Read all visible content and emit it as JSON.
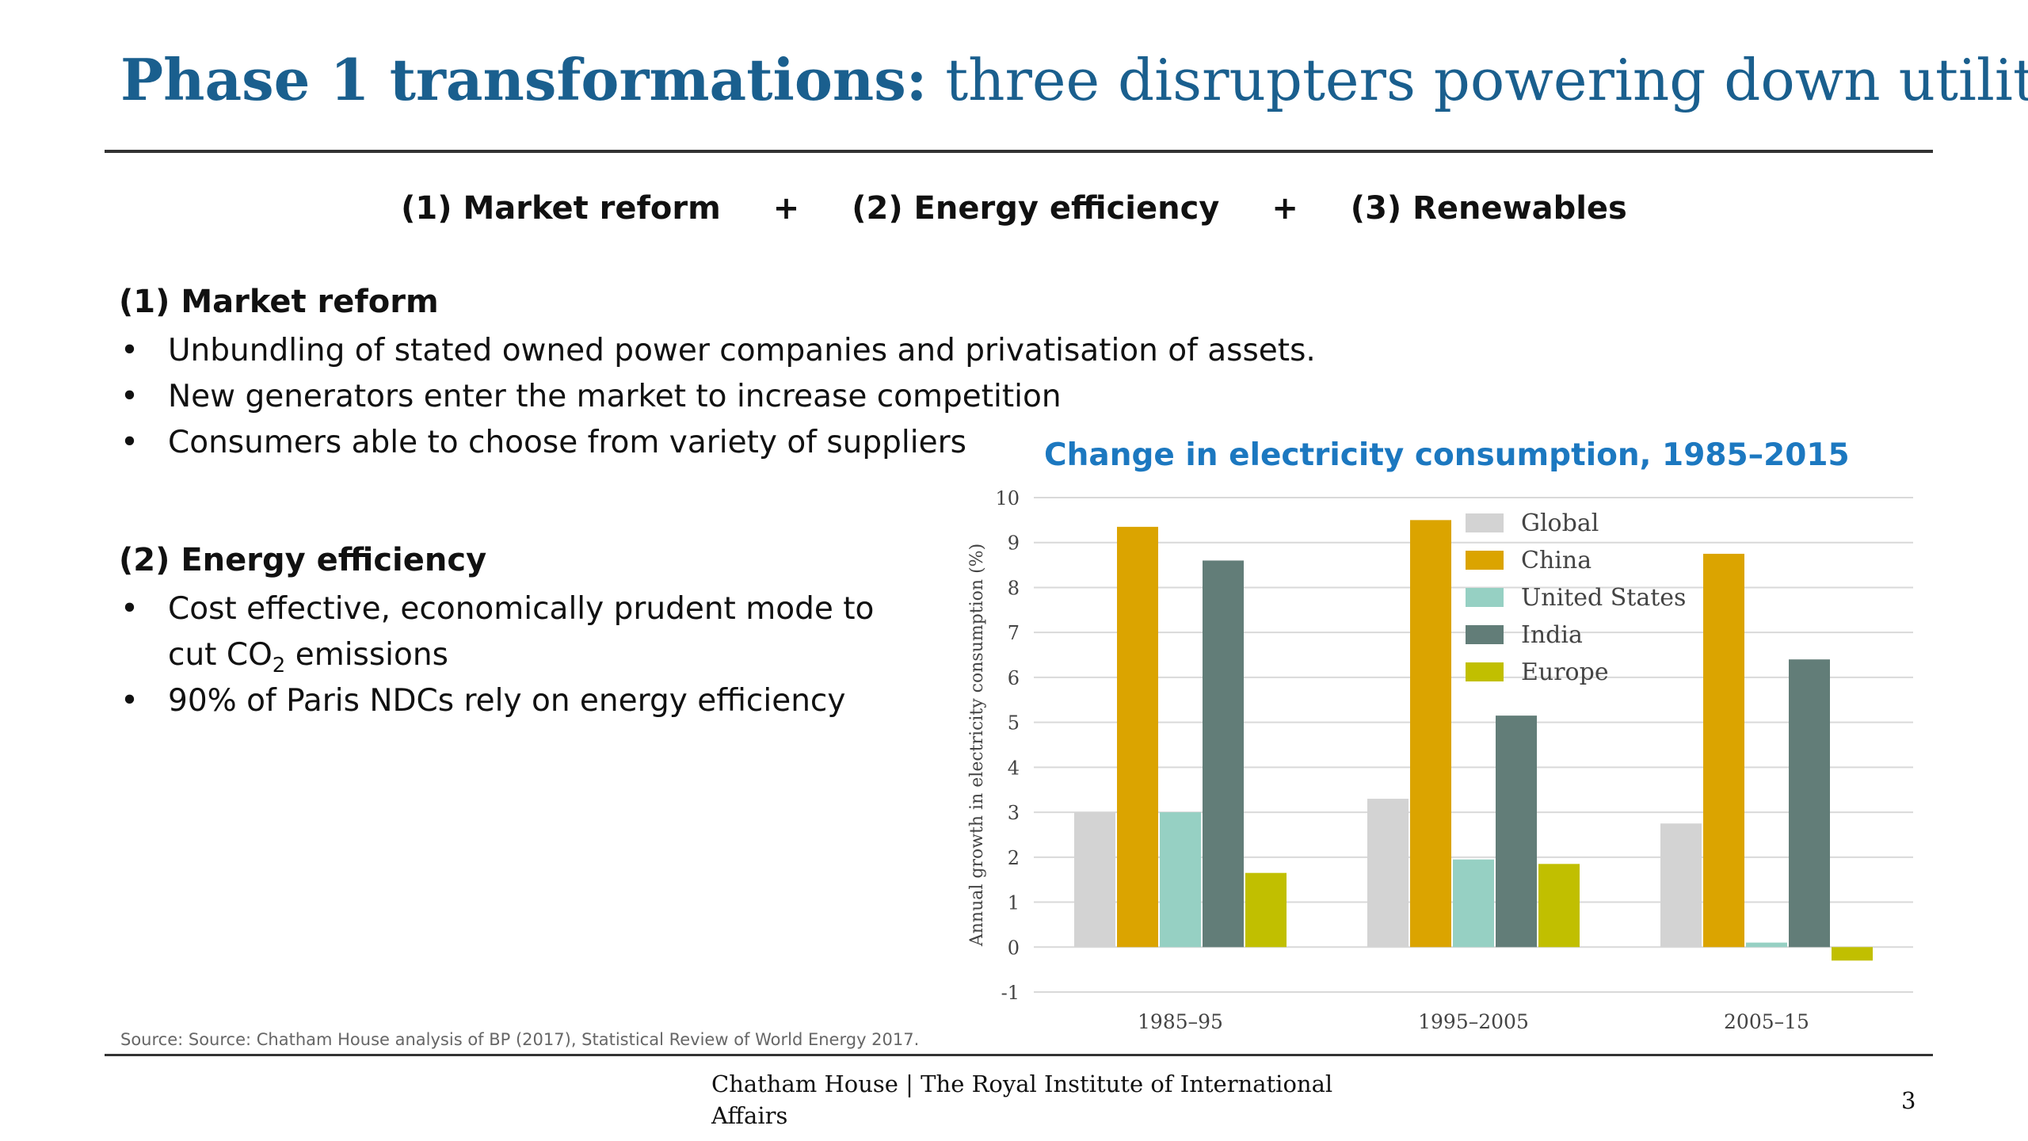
{
  "title": {
    "bold": "Phase 1 transformations:",
    "rest": "three disrupters powering down utilities"
  },
  "disrupters": {
    "item1": "(1) Market reform",
    "plus1": "+",
    "item2": "(2) Energy efficiency",
    "plus2": "+",
    "item3": "(3) Renewables"
  },
  "section1": {
    "heading": "(1) Market reform",
    "bullets": [
      "Unbundling of stated owned power companies and privatisation of assets.",
      "New generators enter the market to increase competition",
      "Consumers able to choose from variety of suppliers"
    ]
  },
  "section2": {
    "heading": "(2) Energy efficiency",
    "bullet1_line1": "Cost effective, economically prudent mode to",
    "bullet1_line2_pre": "cut CO",
    "bullet1_line2_sub": "2",
    "bullet1_line2_post": " emissions",
    "bullet2": "90% of Paris NDCs rely on energy efficiency"
  },
  "bullet_char": "•",
  "source": "Source: Source: Chatham House analysis of BP (2017), Statistical Review of World Energy 2017.",
  "footer": {
    "org": "Chatham House  |  The Royal Institute of International Affairs",
    "page": "3"
  },
  "chart_data": {
    "type": "bar",
    "title": "Change in electricity consumption, 1985–2015",
    "ylabel": "Annual growth in electricity consumption (%)",
    "xlabel": "",
    "categories": [
      "1985–95",
      "1995–2005",
      "2005–15"
    ],
    "ylim": [
      -1,
      10
    ],
    "yticks": [
      -1,
      0,
      1,
      2,
      3,
      4,
      5,
      6,
      7,
      8,
      9,
      10
    ],
    "grid": true,
    "legend_position": "top-right",
    "series": [
      {
        "name": "Global",
        "color": "#d3d3d3",
        "values": [
          3.0,
          3.3,
          2.75
        ]
      },
      {
        "name": "China",
        "color": "#dba400",
        "values": [
          9.35,
          9.5,
          8.75
        ]
      },
      {
        "name": "United States",
        "color": "#96d0c3",
        "values": [
          3.0,
          1.95,
          0.1
        ]
      },
      {
        "name": "India",
        "color": "#627d78",
        "values": [
          8.6,
          5.15,
          6.4
        ]
      },
      {
        "name": "Europe",
        "color": "#c1bf00",
        "values": [
          1.65,
          1.85,
          -0.3
        ]
      }
    ]
  }
}
